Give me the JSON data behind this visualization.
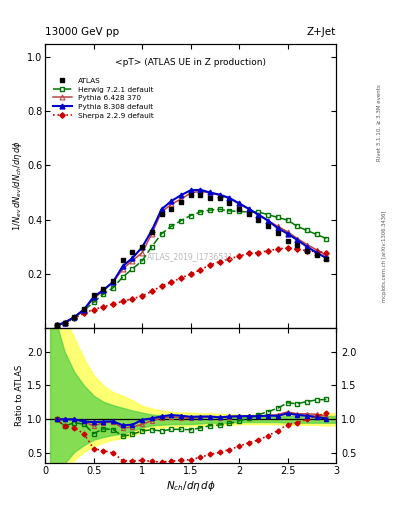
{
  "title_top": "13000 GeV pp",
  "title_right": "Z+Jet",
  "plot_title": "<pT> (ATLAS UE in Z production)",
  "xlabel": "$N_{ch}/d\\eta\\,d\\phi$",
  "ylabel_main": "$1/N_{ev}\\,dN_{ev}/dN_{ch}/d\\eta\\,d\\phi$",
  "ylabel_ratio": "Ratio to ATLAS",
  "watermark": "ATLAS_2019_I1736531",
  "right_label_top": "Rivet 3.1.10, ≥ 3.3M events",
  "right_label_bot": "mcplots.cern.ch [arXiv:1306.3436]",
  "x_atlas": [
    0.12,
    0.2,
    0.3,
    0.4,
    0.5,
    0.6,
    0.7,
    0.8,
    0.9,
    1.0,
    1.1,
    1.2,
    1.3,
    1.4,
    1.5,
    1.6,
    1.7,
    1.8,
    1.9,
    2.0,
    2.1,
    2.2,
    2.3,
    2.4,
    2.5,
    2.6,
    2.7,
    2.8,
    2.9
  ],
  "y_atlas": [
    0.01,
    0.02,
    0.04,
    0.07,
    0.12,
    0.145,
    0.175,
    0.25,
    0.28,
    0.3,
    0.355,
    0.42,
    0.44,
    0.465,
    0.49,
    0.49,
    0.48,
    0.478,
    0.46,
    0.44,
    0.42,
    0.4,
    0.375,
    0.35,
    0.32,
    0.305,
    0.285,
    0.268,
    0.255
  ],
  "x_herwig": [
    0.12,
    0.2,
    0.3,
    0.4,
    0.5,
    0.6,
    0.7,
    0.8,
    0.9,
    1.0,
    1.1,
    1.2,
    1.3,
    1.4,
    1.5,
    1.6,
    1.7,
    1.8,
    1.9,
    2.0,
    2.1,
    2.2,
    2.3,
    2.4,
    2.5,
    2.6,
    2.7,
    2.8,
    2.9
  ],
  "y_herwig": [
    0.01,
    0.018,
    0.038,
    0.065,
    0.095,
    0.125,
    0.148,
    0.188,
    0.218,
    0.248,
    0.3,
    0.348,
    0.375,
    0.396,
    0.415,
    0.428,
    0.435,
    0.438,
    0.432,
    0.43,
    0.428,
    0.428,
    0.418,
    0.408,
    0.398,
    0.375,
    0.36,
    0.345,
    0.33
  ],
  "x_pythia6": [
    0.12,
    0.2,
    0.3,
    0.4,
    0.5,
    0.6,
    0.7,
    0.8,
    0.9,
    1.0,
    1.1,
    1.2,
    1.3,
    1.4,
    1.5,
    1.6,
    1.7,
    1.8,
    1.9,
    2.0,
    2.1,
    2.2,
    2.3,
    2.4,
    2.5,
    2.6,
    2.7,
    2.8,
    2.9
  ],
  "y_pythia6": [
    0.01,
    0.02,
    0.04,
    0.068,
    0.108,
    0.138,
    0.168,
    0.218,
    0.248,
    0.278,
    0.348,
    0.428,
    0.456,
    0.476,
    0.498,
    0.505,
    0.498,
    0.49,
    0.478,
    0.458,
    0.438,
    0.418,
    0.395,
    0.375,
    0.355,
    0.33,
    0.308,
    0.288,
    0.268
  ],
  "x_pythia8": [
    0.12,
    0.2,
    0.3,
    0.4,
    0.5,
    0.6,
    0.7,
    0.8,
    0.9,
    1.0,
    1.1,
    1.2,
    1.3,
    1.4,
    1.5,
    1.6,
    1.7,
    1.8,
    1.9,
    2.0,
    2.1,
    2.2,
    2.3,
    2.4,
    2.5,
    2.6,
    2.7,
    2.8,
    2.9
  ],
  "y_pythia8": [
    0.01,
    0.02,
    0.04,
    0.068,
    0.115,
    0.14,
    0.17,
    0.228,
    0.258,
    0.298,
    0.36,
    0.438,
    0.468,
    0.49,
    0.508,
    0.51,
    0.5,
    0.492,
    0.48,
    0.46,
    0.44,
    0.418,
    0.396,
    0.368,
    0.348,
    0.325,
    0.3,
    0.278,
    0.258
  ],
  "x_sherpa": [
    0.12,
    0.2,
    0.3,
    0.4,
    0.5,
    0.6,
    0.7,
    0.8,
    0.9,
    1.0,
    1.1,
    1.2,
    1.3,
    1.4,
    1.5,
    1.6,
    1.7,
    1.8,
    1.9,
    2.0,
    2.1,
    2.2,
    2.3,
    2.4,
    2.5,
    2.6,
    2.7,
    2.8,
    2.9
  ],
  "y_sherpa": [
    0.01,
    0.018,
    0.035,
    0.055,
    0.068,
    0.078,
    0.088,
    0.098,
    0.108,
    0.118,
    0.135,
    0.155,
    0.168,
    0.185,
    0.198,
    0.215,
    0.232,
    0.245,
    0.255,
    0.265,
    0.275,
    0.278,
    0.285,
    0.292,
    0.295,
    0.29,
    0.285,
    0.282,
    0.278
  ],
  "ratio_herwig": [
    1.0,
    0.9,
    0.95,
    0.93,
    0.79,
    0.86,
    0.85,
    0.75,
    0.78,
    0.83,
    0.845,
    0.828,
    0.853,
    0.852,
    0.847,
    0.873,
    0.906,
    0.916,
    0.939,
    0.977,
    1.019,
    1.07,
    1.114,
    1.166,
    1.244,
    1.23,
    1.263,
    1.287,
    1.294
  ],
  "ratio_pythia6": [
    1.0,
    1.0,
    1.0,
    0.97,
    0.9,
    0.952,
    0.96,
    0.872,
    0.886,
    0.927,
    0.98,
    1.019,
    1.036,
    1.024,
    1.016,
    1.031,
    1.038,
    1.025,
    1.039,
    1.045,
    1.043,
    1.045,
    1.053,
    1.071,
    1.109,
    1.082,
    1.081,
    1.075,
    1.051
  ],
  "ratio_pythia8": [
    1.0,
    1.0,
    1.0,
    0.97,
    0.958,
    0.966,
    0.971,
    0.912,
    0.921,
    0.993,
    1.014,
    1.043,
    1.064,
    1.054,
    1.037,
    1.041,
    1.042,
    1.029,
    1.043,
    1.045,
    1.048,
    1.045,
    1.056,
    1.051,
    1.088,
    1.066,
    1.053,
    1.037,
    1.012
  ],
  "ratio_sherpa": [
    1.0,
    0.9,
    0.875,
    0.786,
    0.567,
    0.538,
    0.503,
    0.392,
    0.386,
    0.393,
    0.38,
    0.369,
    0.382,
    0.398,
    0.404,
    0.439,
    0.483,
    0.513,
    0.554,
    0.602,
    0.655,
    0.695,
    0.76,
    0.834,
    0.922,
    0.951,
    1.0,
    1.052,
    1.09
  ],
  "band_x": [
    0.05,
    0.12,
    0.2,
    0.3,
    0.4,
    0.5,
    0.6,
    0.7,
    0.8,
    0.9,
    1.0,
    1.1,
    1.2,
    1.3,
    1.4,
    1.5,
    1.6,
    1.7,
    1.8,
    1.9,
    2.0,
    2.1,
    2.2,
    2.3,
    2.4,
    2.5,
    2.6,
    2.7,
    2.8,
    2.9,
    3.0
  ],
  "band_yellow_lo": [
    0.15,
    0.15,
    0.25,
    0.4,
    0.52,
    0.6,
    0.66,
    0.7,
    0.72,
    0.76,
    0.82,
    0.86,
    0.88,
    0.89,
    0.89,
    0.9,
    0.91,
    0.91,
    0.92,
    0.92,
    0.93,
    0.93,
    0.93,
    0.93,
    0.93,
    0.92,
    0.92,
    0.92,
    0.92,
    0.91,
    0.91
  ],
  "band_yellow_hi": [
    2.7,
    2.7,
    2.5,
    2.2,
    1.9,
    1.65,
    1.5,
    1.4,
    1.35,
    1.28,
    1.2,
    1.16,
    1.13,
    1.11,
    1.1,
    1.1,
    1.09,
    1.09,
    1.08,
    1.08,
    1.07,
    1.07,
    1.07,
    1.07,
    1.07,
    1.08,
    1.08,
    1.08,
    1.08,
    1.09,
    1.09
  ],
  "band_green_lo": [
    0.2,
    0.2,
    0.35,
    0.52,
    0.62,
    0.7,
    0.74,
    0.77,
    0.79,
    0.83,
    0.88,
    0.91,
    0.92,
    0.93,
    0.93,
    0.93,
    0.94,
    0.95,
    0.95,
    0.95,
    0.96,
    0.96,
    0.96,
    0.96,
    0.96,
    0.95,
    0.95,
    0.95,
    0.95,
    0.95,
    0.95
  ],
  "band_green_hi": [
    2.4,
    2.4,
    2.0,
    1.7,
    1.5,
    1.35,
    1.26,
    1.21,
    1.17,
    1.13,
    1.1,
    1.07,
    1.06,
    1.05,
    1.05,
    1.05,
    1.05,
    1.05,
    1.05,
    1.04,
    1.04,
    1.04,
    1.04,
    1.04,
    1.04,
    1.05,
    1.05,
    1.05,
    1.05,
    1.05,
    1.05
  ],
  "color_atlas": "#000000",
  "color_herwig": "#007700",
  "color_pythia6": "#bb4444",
  "color_pythia8": "#0000cc",
  "color_sherpa": "#cc0000",
  "main_ylim": [
    0.0,
    1.05
  ],
  "ratio_ylim": [
    0.35,
    2.35
  ],
  "xlim": [
    0.05,
    3.0
  ]
}
